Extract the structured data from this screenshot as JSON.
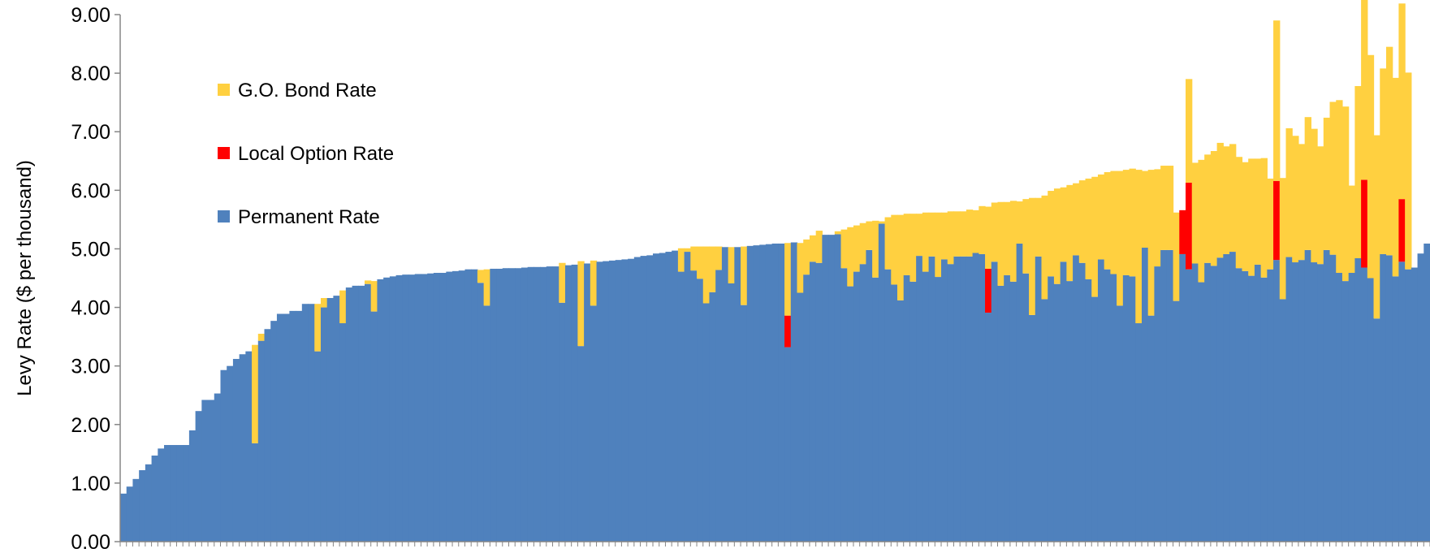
{
  "chart_data": {
    "type": "bar",
    "stacked": true,
    "ylabel": "Levy Rate ($ per thousand)",
    "xlabel": "",
    "ylim": [
      0,
      9
    ],
    "y_ticks": [
      "0.00",
      "1.00",
      "2.00",
      "3.00",
      "4.00",
      "5.00",
      "6.00",
      "7.00",
      "8.00",
      "9.00"
    ],
    "legend_placement": "top-left",
    "grid": false,
    "colors": {
      "permanent": "#4f81bd",
      "local_option": "#ff0000",
      "go_bond": "#ffd040"
    },
    "legend": [
      {
        "key": "go_bond",
        "label": "G.O. Bond Rate"
      },
      {
        "key": "local_option",
        "label": "Local Option Rate"
      },
      {
        "key": "permanent",
        "label": "Permanent Rate"
      }
    ],
    "series": [
      {
        "key": "permanent",
        "name": "Permanent Rate",
        "values": [
          0.82,
          0.94,
          1.07,
          1.22,
          1.32,
          1.47,
          1.59,
          1.65,
          1.65,
          1.65,
          1.65,
          1.9,
          2.23,
          2.42,
          2.42,
          2.53,
          2.93,
          3.0,
          3.12,
          3.2,
          3.25,
          1.68,
          3.43,
          3.63,
          3.77,
          3.89,
          3.89,
          3.94,
          3.94,
          4.06,
          4.06,
          3.25,
          4.0,
          4.16,
          4.2,
          3.73,
          4.34,
          4.37,
          4.37,
          4.4,
          3.93,
          4.48,
          4.51,
          4.53,
          4.55,
          4.56,
          4.56,
          4.57,
          4.57,
          4.58,
          4.59,
          4.59,
          4.61,
          4.62,
          4.63,
          4.65,
          4.65,
          4.42,
          4.03,
          4.66,
          4.66,
          4.67,
          4.67,
          4.67,
          4.68,
          4.69,
          4.69,
          4.69,
          4.7,
          4.7,
          4.08,
          4.72,
          4.73,
          3.34,
          4.75,
          4.03,
          4.78,
          4.79,
          4.8,
          4.81,
          4.82,
          4.83,
          4.86,
          4.88,
          4.89,
          4.92,
          4.93,
          4.95,
          4.97,
          4.61,
          4.95,
          4.63,
          4.49,
          4.07,
          4.26,
          4.64,
          5.03,
          4.41,
          5.03,
          4.04,
          5.05,
          5.06,
          5.07,
          5.08,
          5.09,
          5.09,
          3.32,
          5.11,
          4.25,
          4.56,
          4.78,
          4.76,
          5.24,
          5.24,
          5.25,
          4.67,
          4.36,
          4.61,
          4.74,
          4.98,
          4.51,
          5.43,
          4.65,
          4.39,
          4.12,
          4.55,
          4.44,
          4.88,
          4.61,
          4.87,
          4.52,
          4.82,
          4.74,
          4.87,
          4.87,
          4.87,
          4.93,
          4.91,
          3.91,
          4.78,
          4.37,
          4.55,
          4.44,
          5.09,
          4.58,
          3.87,
          4.87,
          4.14,
          4.53,
          4.4,
          4.78,
          4.45,
          4.89,
          4.76,
          4.48,
          4.18,
          4.82,
          4.65,
          4.57,
          4.03,
          4.55,
          4.53,
          3.73,
          5.02,
          3.86,
          4.7,
          4.98,
          4.98,
          4.11,
          4.91,
          4.65,
          4.75,
          4.43,
          4.76,
          4.71,
          4.85,
          4.91,
          4.95,
          4.67,
          4.62,
          4.54,
          4.73,
          4.51,
          4.65,
          4.81,
          4.14,
          4.86,
          4.77,
          4.81,
          4.98,
          4.77,
          4.74,
          4.98,
          4.9,
          4.59,
          4.45,
          4.59,
          4.84,
          4.68,
          4.5,
          3.81,
          4.91,
          4.89,
          4.53,
          4.78,
          4.65,
          4.68,
          4.92,
          5.09
        ]
      },
      {
        "key": "local_option",
        "name": "Local Option Rate",
        "values": [
          0,
          0,
          0,
          0,
          0,
          0,
          0,
          0,
          0,
          0,
          0,
          0,
          0,
          0,
          0,
          0,
          0,
          0,
          0,
          0,
          0,
          0,
          0,
          0,
          0,
          0,
          0,
          0,
          0,
          0,
          0,
          0,
          0,
          0,
          0,
          0,
          0,
          0,
          0,
          0,
          0,
          0,
          0,
          0,
          0,
          0,
          0,
          0,
          0,
          0,
          0,
          0,
          0,
          0,
          0,
          0,
          0,
          0,
          0,
          0,
          0,
          0,
          0,
          0,
          0,
          0,
          0,
          0,
          0,
          0,
          0,
          0,
          0,
          0,
          0,
          0,
          0,
          0,
          0,
          0,
          0,
          0,
          0,
          0,
          0,
          0,
          0,
          0,
          0,
          0,
          0,
          0,
          0,
          0,
          0,
          0,
          0,
          0,
          0,
          0,
          0,
          0,
          0,
          0,
          0,
          0,
          0.54,
          0,
          0,
          0,
          0,
          0,
          0,
          0,
          0,
          0,
          0,
          0,
          0,
          0,
          0,
          0,
          0,
          0,
          0,
          0,
          0,
          0,
          0,
          0,
          0,
          0,
          0,
          0,
          0,
          0,
          0,
          0,
          0.75,
          0,
          0,
          0,
          0,
          0,
          0,
          0,
          0,
          0,
          0,
          0,
          0,
          0,
          0,
          0,
          0,
          0,
          0,
          0,
          0,
          0,
          0,
          0,
          0,
          0,
          0,
          0,
          0,
          0,
          0,
          0.75,
          1.48,
          0,
          0,
          0,
          0,
          0,
          0,
          0,
          0,
          0,
          0,
          0,
          0,
          0,
          1.35,
          0,
          0,
          0,
          0,
          0,
          0,
          0,
          0,
          0,
          0,
          0,
          0,
          0,
          1.5,
          0,
          0,
          0,
          0,
          0,
          1.07,
          0,
          0,
          0,
          0,
          0,
          0,
          0
        ]
      },
      {
        "key": "go_bond",
        "name": "G.O. Bond Rate",
        "values": [
          0,
          0,
          0,
          0,
          0,
          0,
          0,
          0,
          0,
          0,
          0,
          0,
          0,
          0,
          0,
          0,
          0,
          0,
          0,
          0,
          0,
          1.68,
          0.12,
          0,
          0,
          0,
          0,
          0,
          0,
          0,
          0,
          0.81,
          0.16,
          0,
          0,
          0.56,
          0,
          0,
          0,
          0.06,
          0.52,
          0,
          0,
          0,
          0,
          0,
          0,
          0,
          0,
          0,
          0,
          0,
          0,
          0,
          0,
          0,
          0,
          0.22,
          0.62,
          0,
          0,
          0,
          0,
          0,
          0,
          0,
          0,
          0,
          0,
          0,
          0.68,
          0,
          0,
          1.45,
          0,
          0.77,
          0,
          0,
          0,
          0,
          0,
          0,
          0,
          0,
          0,
          0,
          0,
          0,
          0,
          0.4,
          0.06,
          0.41,
          0.55,
          0.97,
          0.78,
          0.4,
          0,
          0.62,
          0,
          1.0,
          0,
          0,
          0,
          0,
          0,
          0,
          1.24,
          0,
          0.85,
          0.6,
          0.45,
          0.55,
          0,
          0,
          0.05,
          0.66,
          1.01,
          0.79,
          0.7,
          0.49,
          0.97,
          0.04,
          0.89,
          1.19,
          1.46,
          1.05,
          1.16,
          0.72,
          1.01,
          0.75,
          1.1,
          0.8,
          0.9,
          0.77,
          0.77,
          0.8,
          0.73,
          0.82,
          1.06,
          1.01,
          1.43,
          1.25,
          1.38,
          0.72,
          1.27,
          2.0,
          1.0,
          1.77,
          1.46,
          1.63,
          1.27,
          1.64,
          1.23,
          1.41,
          1.72,
          2.05,
          1.45,
          1.66,
          1.76,
          2.3,
          1.8,
          1.84,
          2.62,
          1.31,
          2.49,
          1.66,
          1.44,
          1.44,
          1.51,
          0,
          1.77,
          1.72,
          2.09,
          1.85,
          1.96,
          1.96,
          1.84,
          1.84,
          1.9,
          1.86,
          2.0,
          1.81,
          2.04,
          1.55,
          2.74,
          2.07,
          2.2,
          2.16,
          1.98,
          2.27,
          2.28,
          2.01,
          2.26,
          2.61,
          2.95,
          2.98,
          1.49,
          2.94,
          3.16,
          3.81,
          3.13,
          3.17,
          3.56,
          3.39,
          3.34,
          3.36
        ]
      }
    ]
  }
}
